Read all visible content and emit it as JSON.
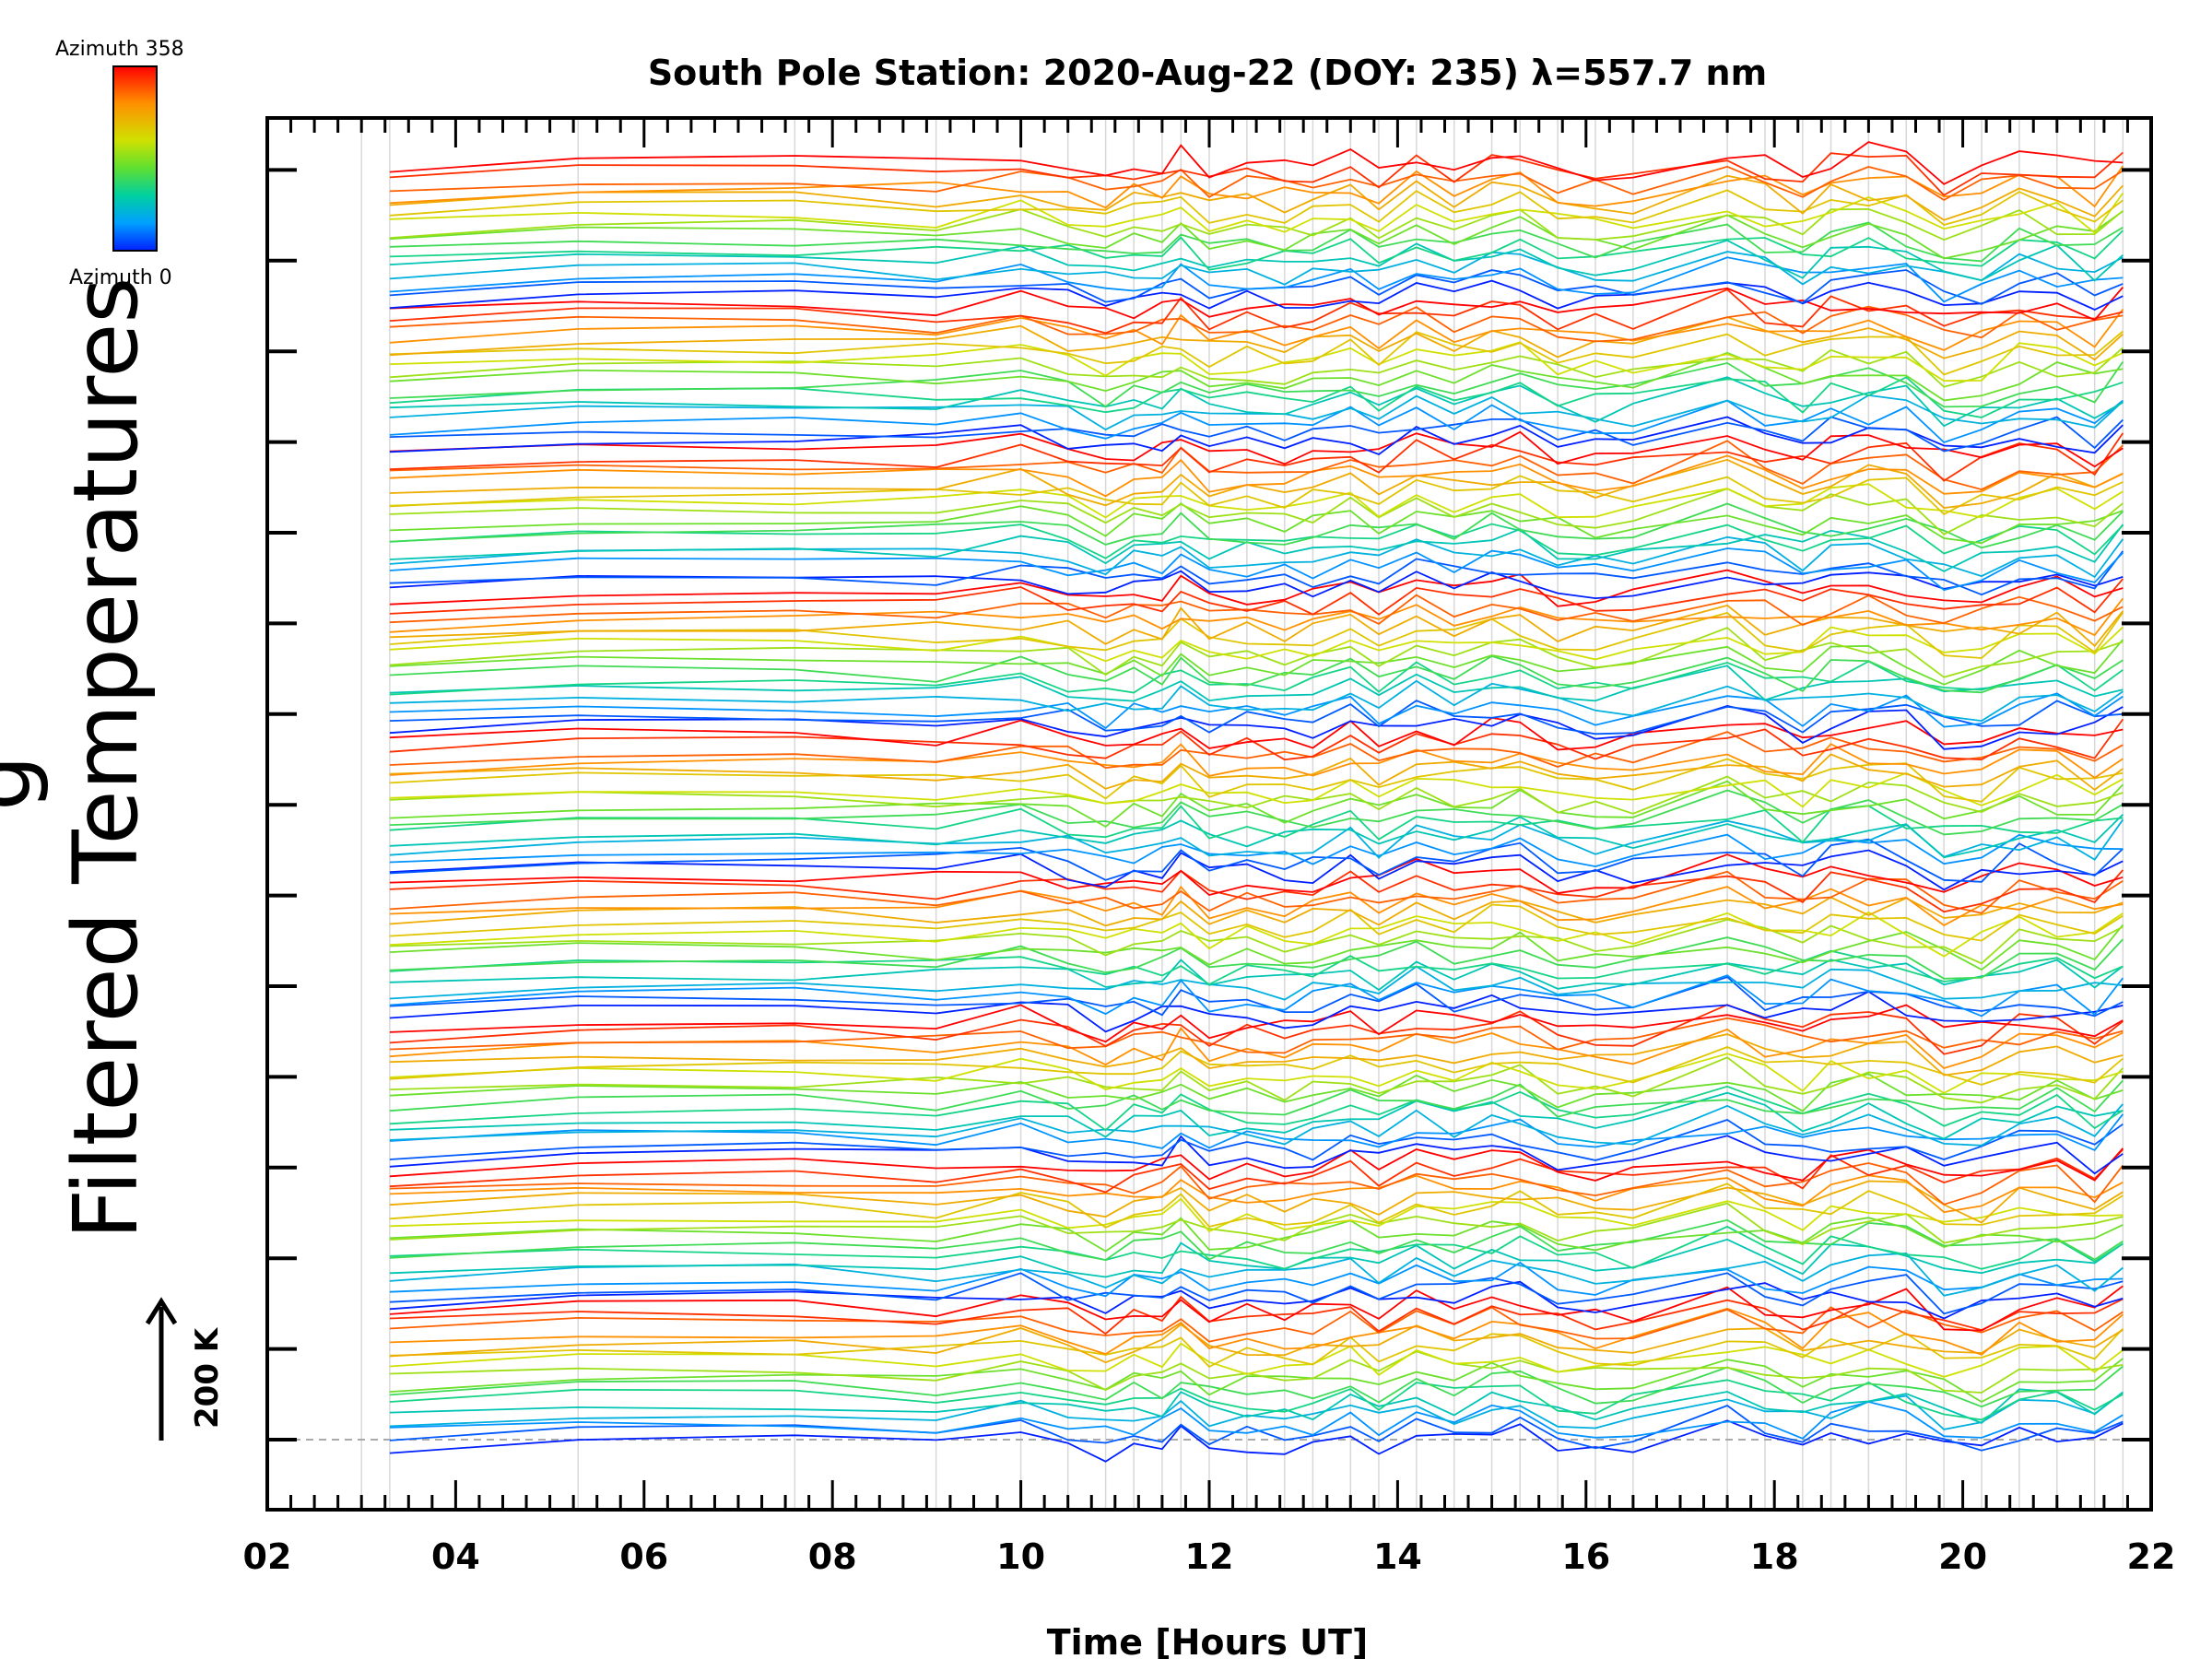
{
  "chart_data": {
    "type": "line",
    "title": "South Pole Station: 2020-Aug-22 (DOY: 235) λ=557.7 nm",
    "xlabel": "Time [Hours UT]",
    "ylabel": "Filtered Temperatures",
    "ylabel_partial": "g",
    "xlim": [
      2,
      22
    ],
    "xticks": [
      "02",
      "04",
      "06",
      "08",
      "10",
      "12",
      "14",
      "16",
      "18",
      "20",
      "22"
    ],
    "y_major_tick_count": 15,
    "scale_bar_label": "200 K",
    "colorbar": {
      "top_label": "Azimuth 358",
      "bottom_label": "Azimuth 0",
      "colors": [
        "#ff0000",
        "#ff8000",
        "#e0e000",
        "#80e000",
        "#00d060",
        "#00c0d0",
        "#0040ff",
        "#0000e0"
      ]
    },
    "time_points": [
      3.3,
      5.3,
      7.6,
      9.1,
      10.0,
      10.5,
      10.9,
      11.2,
      11.5,
      11.7,
      12.0,
      12.4,
      12.8,
      13.1,
      13.5,
      13.8,
      14.2,
      14.6,
      15.0,
      15.3,
      15.7,
      16.1,
      16.5,
      17.5,
      17.9,
      18.3,
      18.6,
      19.0,
      19.4,
      19.8,
      20.2,
      20.6,
      21.0,
      21.4,
      21.7
    ],
    "series_count": 144,
    "group_count": 13,
    "sweep_count": 9,
    "offset_K_per_series": 19.5,
    "amplitude_K": 28,
    "baseline_K": 0
  }
}
